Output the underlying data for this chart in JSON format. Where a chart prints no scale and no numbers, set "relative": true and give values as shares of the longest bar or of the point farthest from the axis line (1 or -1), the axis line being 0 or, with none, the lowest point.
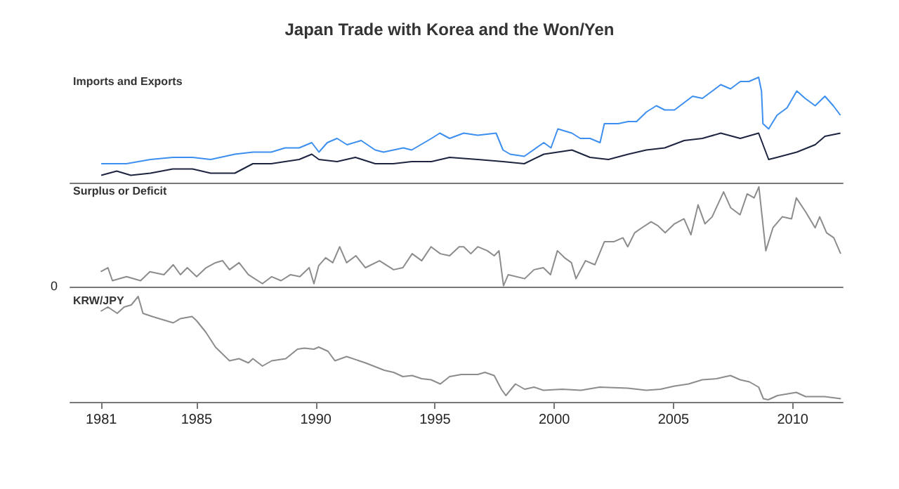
{
  "chart_data": [
    {
      "type": "line",
      "title": "Japan Trade with Korea and the Won/Yen",
      "subtitle": "Imports and Exports",
      "relative": true,
      "xlim": [
        1979.7,
        2012.1
      ],
      "xticks": [
        1981,
        1985,
        1990,
        1995,
        2000,
        2005,
        2010
      ],
      "tick_labels": false,
      "series": [
        {
          "color": "#3d8fef",
          "x": [
            1981.0,
            1982.06,
            1983.06,
            1984.0,
            1984.83,
            1985.59,
            1986.6,
            1987.36,
            1988.13,
            1988.71,
            1989.3,
            1989.83,
            1990.13,
            1990.48,
            1990.89,
            1991.31,
            1991.9,
            1992.49,
            1992.84,
            1993.67,
            1994.02,
            1994.85,
            1995.2,
            1995.61,
            1996.2,
            1996.79,
            1997.56,
            1997.85,
            1998.15,
            1998.74,
            1999.56,
            1999.86,
            2000.15,
            2000.74,
            2001.09,
            2001.5,
            2001.92,
            2002.1,
            2002.68,
            2003.1,
            2003.45,
            2003.86,
            2004.28,
            2004.63,
            2005.04,
            2005.45,
            2005.8,
            2006.21,
            2006.63,
            2006.98,
            2007.39,
            2007.8,
            2008.16,
            2008.57,
            2008.69,
            2008.75,
            2008.99,
            2009.34,
            2009.76,
            2010.17,
            2010.52,
            2010.94,
            2011.35,
            2011.7,
            2012.0
          ],
          "values": [
            0.18,
            0.18,
            0.22,
            0.24,
            0.24,
            0.22,
            0.27,
            0.29,
            0.29,
            0.33,
            0.33,
            0.38,
            0.29,
            0.38,
            0.42,
            0.36,
            0.4,
            0.31,
            0.29,
            0.33,
            0.31,
            0.42,
            0.47,
            0.42,
            0.47,
            0.45,
            0.47,
            0.31,
            0.27,
            0.25,
            0.38,
            0.33,
            0.51,
            0.47,
            0.42,
            0.42,
            0.38,
            0.56,
            0.56,
            0.58,
            0.58,
            0.67,
            0.73,
            0.69,
            0.69,
            0.76,
            0.82,
            0.8,
            0.87,
            0.93,
            0.89,
            0.96,
            0.96,
            1.0,
            0.87,
            0.56,
            0.51,
            0.64,
            0.71,
            0.87,
            0.8,
            0.73,
            0.82,
            0.73,
            0.64
          ]
        },
        {
          "color": "#1c2440",
          "x": [
            1981.0,
            1981.65,
            1982.24,
            1983.06,
            1984.0,
            1984.83,
            1985.59,
            1986.6,
            1987.36,
            1988.13,
            1988.71,
            1989.3,
            1989.83,
            1990.13,
            1990.89,
            1991.66,
            1992.49,
            1993.25,
            1994.02,
            1994.85,
            1995.61,
            1996.79,
            1997.85,
            1998.74,
            1999.56,
            2000.74,
            2001.5,
            2002.27,
            2003.1,
            2003.86,
            2004.63,
            2005.45,
            2006.21,
            2006.98,
            2007.8,
            2008.57,
            2008.99,
            2009.34,
            2010.17,
            2010.94,
            2011.35,
            2012.0
          ],
          "values": [
            0.07,
            0.11,
            0.07,
            0.09,
            0.13,
            0.13,
            0.09,
            0.09,
            0.18,
            0.18,
            0.2,
            0.22,
            0.27,
            0.22,
            0.2,
            0.24,
            0.18,
            0.18,
            0.2,
            0.2,
            0.24,
            0.22,
            0.2,
            0.18,
            0.27,
            0.31,
            0.24,
            0.22,
            0.27,
            0.31,
            0.33,
            0.4,
            0.42,
            0.47,
            0.42,
            0.47,
            0.22,
            0.24,
            0.29,
            0.36,
            0.44,
            0.47
          ]
        }
      ]
    },
    {
      "type": "line",
      "title": "Surplus or Deficit",
      "relative": true,
      "xlim": [
        1979.7,
        2012.1
      ],
      "xticks": [
        1981,
        1985,
        1990,
        1995,
        2000,
        2005,
        2010
      ],
      "tick_labels": false,
      "annotations": [
        "0"
      ],
      "series": [
        {
          "color": "#8c8c8c",
          "x": [
            1980.98,
            1981.28,
            1981.47,
            1982.06,
            1982.65,
            1983.04,
            1983.63,
            1984.02,
            1984.32,
            1984.61,
            1985.0,
            1985.4,
            1985.79,
            1986.09,
            1986.38,
            1986.78,
            1987.17,
            1987.76,
            1988.15,
            1988.54,
            1988.94,
            1989.33,
            1989.72,
            1989.92,
            1990.12,
            1990.41,
            1990.71,
            1991.0,
            1991.29,
            1991.68,
            1992.08,
            1992.67,
            1993.26,
            1993.65,
            1994.04,
            1994.44,
            1994.83,
            1995.22,
            1995.61,
            1996.01,
            1996.2,
            1996.5,
            1996.79,
            1997.19,
            1997.48,
            1997.68,
            1997.87,
            1998.07,
            1998.76,
            1999.15,
            1999.54,
            1999.84,
            2000.13,
            2000.43,
            2000.72,
            2000.91,
            2001.31,
            2001.7,
            2002.1,
            2002.49,
            2002.88,
            2003.08,
            2003.37,
            2003.67,
            2004.06,
            2004.35,
            2004.65,
            2005.04,
            2005.44,
            2005.73,
            2006.03,
            2006.32,
            2006.62,
            2007.1,
            2007.4,
            2007.79,
            2008.09,
            2008.38,
            2008.58,
            2008.87,
            2009.17,
            2009.56,
            2009.95,
            2010.15,
            2010.54,
            2010.94,
            2011.13,
            2011.42,
            2011.72,
            2012.01
          ],
          "values": [
            0.15,
            0.19,
            0.06,
            0.1,
            0.06,
            0.15,
            0.12,
            0.22,
            0.12,
            0.19,
            0.1,
            0.19,
            0.24,
            0.26,
            0.17,
            0.24,
            0.12,
            0.03,
            0.1,
            0.06,
            0.12,
            0.1,
            0.19,
            0.03,
            0.21,
            0.29,
            0.24,
            0.4,
            0.24,
            0.31,
            0.19,
            0.26,
            0.17,
            0.19,
            0.33,
            0.26,
            0.4,
            0.33,
            0.31,
            0.4,
            0.4,
            0.33,
            0.4,
            0.36,
            0.31,
            0.36,
            0.01,
            0.12,
            0.08,
            0.17,
            0.19,
            0.12,
            0.36,
            0.29,
            0.24,
            0.08,
            0.26,
            0.22,
            0.45,
            0.45,
            0.49,
            0.4,
            0.54,
            0.59,
            0.65,
            0.61,
            0.54,
            0.63,
            0.68,
            0.52,
            0.82,
            0.63,
            0.7,
            0.95,
            0.79,
            0.72,
            0.93,
            0.89,
            1.0,
            0.36,
            0.59,
            0.7,
            0.68,
            0.89,
            0.75,
            0.59,
            0.7,
            0.54,
            0.49,
            0.33
          ]
        }
      ]
    },
    {
      "type": "line",
      "title": "KRW/JPY",
      "relative": true,
      "xlim": [
        1979.7,
        2012.1
      ],
      "xticks": [
        1981,
        1985,
        1990,
        1995,
        2000,
        2005,
        2010
      ],
      "tick_labels": "x",
      "series": [
        {
          "color": "#8c8c8c",
          "x": [
            1980.98,
            1981.28,
            1981.67,
            1981.96,
            1982.26,
            1982.55,
            1982.75,
            1983.14,
            1983.43,
            1984.02,
            1984.32,
            1984.81,
            1985.0,
            1985.39,
            1985.79,
            1986.38,
            1986.78,
            1987.17,
            1987.36,
            1987.76,
            1988.15,
            1988.74,
            1989.23,
            1989.52,
            1989.92,
            1990.12,
            1990.51,
            1990.8,
            1991.29,
            1992.08,
            1992.87,
            1993.26,
            1993.65,
            1994.04,
            1994.44,
            1994.83,
            1995.22,
            1995.61,
            1996.1,
            1996.2,
            1996.79,
            1997.09,
            1997.48,
            1997.78,
            1997.97,
            1998.37,
            1998.76,
            1999.15,
            1999.54,
            2000.33,
            2001.12,
            2001.9,
            2003.08,
            2003.86,
            2004.45,
            2005.04,
            2005.63,
            2006.21,
            2006.8,
            2007.39,
            2007.79,
            2008.18,
            2008.57,
            2008.77,
            2008.97,
            2009.36,
            2010.15,
            2010.54,
            2011.34,
            2012.02
          ],
          "values": [
            0.86,
            0.9,
            0.84,
            0.9,
            0.92,
            1.0,
            0.84,
            0.81,
            0.79,
            0.75,
            0.79,
            0.81,
            0.77,
            0.66,
            0.52,
            0.39,
            0.41,
            0.37,
            0.41,
            0.34,
            0.39,
            0.41,
            0.5,
            0.51,
            0.5,
            0.52,
            0.48,
            0.39,
            0.43,
            0.37,
            0.3,
            0.28,
            0.24,
            0.25,
            0.22,
            0.21,
            0.17,
            0.24,
            0.26,
            0.26,
            0.26,
            0.28,
            0.25,
            0.12,
            0.06,
            0.17,
            0.12,
            0.14,
            0.11,
            0.12,
            0.11,
            0.14,
            0.13,
            0.11,
            0.12,
            0.15,
            0.17,
            0.21,
            0.22,
            0.25,
            0.21,
            0.19,
            0.14,
            0.03,
            0.02,
            0.06,
            0.09,
            0.05,
            0.05,
            0.03
          ]
        }
      ]
    }
  ]
}
